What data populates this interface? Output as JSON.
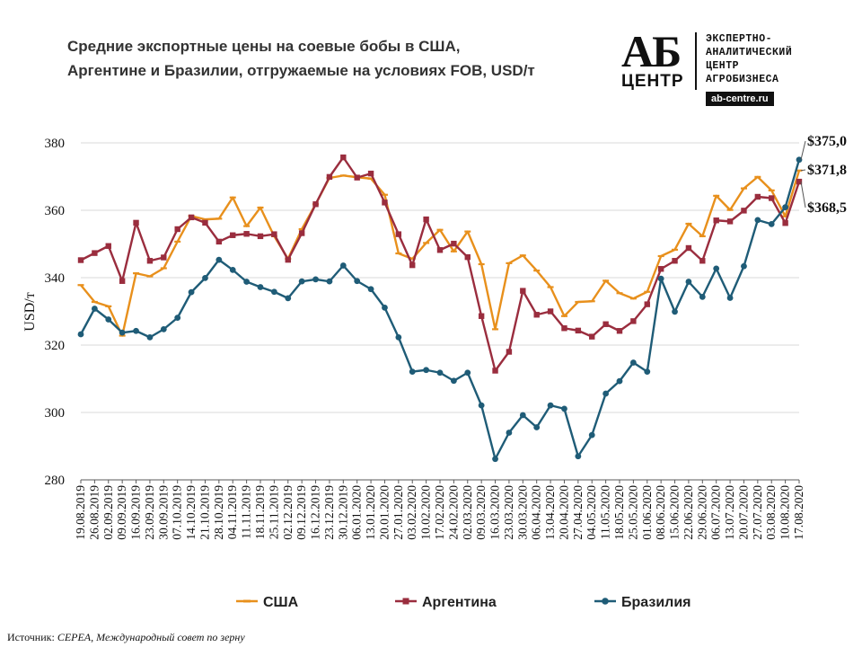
{
  "title": {
    "line1": "Средние экспортные цены на соевые бобы в США,",
    "line2": "Аргентине и Бразилии, отгружаемые на условиях FOB, USD/т"
  },
  "logo": {
    "ab": "АБ",
    "center": "ЦЕНТР",
    "text_lines": [
      "ЭКСПЕРТНО-",
      "АНАЛИТИЧЕСКИЙ",
      "ЦЕНТР",
      "АГРОБИЗНЕСА"
    ],
    "url": "ab-centre.ru"
  },
  "source": {
    "label": "Источник:",
    "text": "CEPEA, Международный совет по зерну"
  },
  "colors": {
    "usa": "#E8901C",
    "argentina": "#9A2D3E",
    "brazil": "#1F5C77",
    "grid": "#D9D9D9",
    "axis": "#595959"
  },
  "chart_data": {
    "type": "line",
    "title": "Средние экспортные цены на соевые бобы в США, Аргентине и Бразилии, отгружаемые на условиях FOB, USD/т",
    "xlabel": "",
    "ylabel": "USD/т",
    "ylim": [
      280,
      380
    ],
    "yticks": [
      280,
      300,
      320,
      340,
      360,
      380
    ],
    "grid": true,
    "legend_position": "bottom",
    "categories": [
      "19.08.2019",
      "26.08.2019",
      "02.09.2019",
      "09.09.2019",
      "16.09.2019",
      "23.09.2019",
      "30.09.2019",
      "07.10.2019",
      "14.10.2019",
      "21.10.2019",
      "28.10.2019",
      "04.11.2019",
      "11.11.2019",
      "18.11.2019",
      "25.11.2019",
      "02.12.2019",
      "09.12.2019",
      "16.12.2019",
      "23.12.2019",
      "30.12.2019",
      "06.01.2020",
      "13.01.2020",
      "20.01.2020",
      "27.01.2020",
      "03.02.2020",
      "10.02.2020",
      "17.02.2020",
      "24.02.2020",
      "02.03.2020",
      "09.03.2020",
      "16.03.2020",
      "23.03.2020",
      "30.03.2020",
      "06.04.2020",
      "13.04.2020",
      "20.04.2020",
      "27.04.2020",
      "04.05.2020",
      "11.05.2020",
      "18.05.2020",
      "25.05.2020",
      "01.06.2020",
      "08.06.2020",
      "15.06.2020",
      "22.06.2020",
      "29.06.2020",
      "06.07.2020",
      "13.07.2020",
      "20.07.2020",
      "27.07.2020",
      "03.08.2020",
      "10.08.2020",
      "17.08.2020"
    ],
    "tick_labels": [
      "19.08.2019",
      "26.08.2019",
      "02.09.2019",
      "09.09.2019",
      "16.09.2019",
      "23.09.2019",
      "30.09.2019",
      "07.10.2019",
      "14.10.2019",
      "21.10.2019",
      "28.10.2019",
      "04.11.2019",
      "11.11.2019",
      "18.11.2019",
      "25.11.2019",
      "02.12.2019",
      "09.12.2019",
      "16.12.2019",
      "23.12.2019",
      "30.12.2019",
      "06.01.2020",
      "13.01.2020",
      "20.01.2020",
      "27.01.2020",
      "03.02.2020",
      "10.02.2020",
      "17.02.2020",
      "24.02.2020",
      "02.03.2020",
      "09.03.2020",
      "16.03.2020",
      "23.03.2020",
      "30.03.2020",
      "06.04.2020",
      "13.04.2020",
      "20.04.2020",
      "27.04.2020",
      "04.05.2020",
      "11.05.2020",
      "18.05.2020",
      "25.05.2020",
      "01.06.2020",
      "08.06.2020",
      "15.06.2020",
      "22.06.2020",
      "29.06.2020",
      "06.07.2020",
      "13.07.2020",
      "20.07.2020",
      "27.07.2020",
      "03.08.2020",
      "10.08.2020",
      "17.08.2020"
    ],
    "series": [
      {
        "name": "США",
        "color_key": "usa",
        "end_label": "$371,8",
        "values": [
          337.8,
          332.8,
          331.5,
          322.8,
          341.3,
          340.4,
          342.8,
          350.7,
          358.3,
          357.3,
          357.5,
          363.8,
          355.3,
          360.8,
          352.3,
          345.6,
          354.4,
          361.8,
          369.6,
          370.3,
          369.8,
          369.4,
          364.6,
          347.2,
          345.6,
          350.3,
          354.2,
          347.8,
          353.7,
          344.0,
          324.7,
          344.3,
          346.6,
          342.1,
          337.2,
          328.6,
          332.8,
          333.0,
          339.1,
          335.4,
          333.8,
          335.8,
          346.4,
          348.3,
          356.0,
          352.3,
          364.3,
          360.1,
          366.5,
          369.9,
          365.9,
          358.2,
          371.8
        ]
      },
      {
        "name": "Аргентина",
        "color_key": "argentina",
        "end_label": "$368,5",
        "values": [
          345.2,
          347.3,
          349.4,
          339.0,
          356.3,
          345.0,
          346.0,
          354.4,
          357.9,
          356.3,
          350.7,
          352.6,
          353.0,
          352.3,
          352.9,
          345.3,
          353.2,
          361.8,
          369.9,
          375.7,
          369.7,
          370.9,
          362.3,
          352.9,
          343.7,
          357.3,
          348.2,
          350.1,
          346.1,
          328.6,
          312.4,
          318.0,
          336.1,
          329.0,
          330.0,
          325.0,
          324.3,
          322.5,
          326.2,
          324.2,
          327.1,
          332.1,
          342.6,
          345.0,
          348.8,
          345.0,
          357.0,
          356.7,
          359.9,
          364.0,
          363.6,
          356.2,
          368.5
        ]
      },
      {
        "name": "Бразилия",
        "color_key": "brazil",
        "end_label": "$375,0",
        "values": [
          323.2,
          330.8,
          327.6,
          323.7,
          324.2,
          322.3,
          324.7,
          328.1,
          335.7,
          339.9,
          345.3,
          342.3,
          338.8,
          337.2,
          335.8,
          333.9,
          338.9,
          339.5,
          338.9,
          343.6,
          339.0,
          336.6,
          331.1,
          322.3,
          312.1,
          312.6,
          311.8,
          309.4,
          311.8,
          302.1,
          286.2,
          294.0,
          299.2,
          295.6,
          302.1,
          301.1,
          287.0,
          293.3,
          305.6,
          309.3,
          314.8,
          312.1,
          339.7,
          329.9,
          338.8,
          334.3,
          342.7,
          334.0,
          343.4,
          357.1,
          355.9,
          360.9,
          375.0
        ]
      }
    ]
  }
}
